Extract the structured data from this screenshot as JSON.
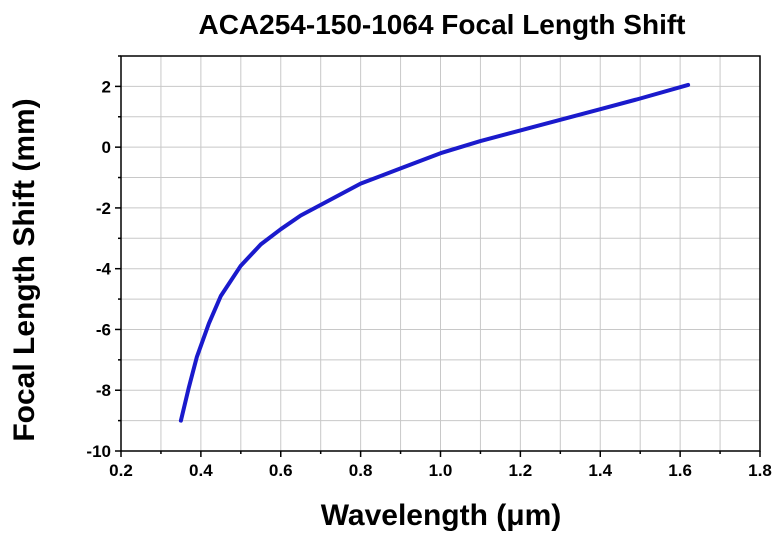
{
  "chart_data": {
    "type": "line",
    "title": "ACA254-150-1064 Focal Length Shift",
    "xlabel": "Wavelength (μm)",
    "ylabel": "Focal Length Shift (mm)",
    "xlim": [
      0.2,
      1.8
    ],
    "ylim": [
      -10,
      3
    ],
    "x_major_ticks": [
      0.2,
      0.4,
      0.6,
      0.8,
      1.0,
      1.2,
      1.4,
      1.6,
      1.8
    ],
    "x_tick_labels": [
      "0.2",
      "0.4",
      "0.6",
      "0.8",
      "1.0",
      "1.2",
      "1.4",
      "1.6",
      "1.8"
    ],
    "y_major_ticks": [
      -10,
      -8,
      -6,
      -4,
      -2,
      0,
      2
    ],
    "y_tick_labels": [
      "-10",
      "-8",
      "-6",
      "-4",
      "-2",
      "0",
      "2"
    ],
    "grid": true,
    "series": [
      {
        "color": "#1a1acc",
        "x": [
          0.35,
          0.37,
          0.39,
          0.42,
          0.45,
          0.5,
          0.55,
          0.6,
          0.65,
          0.7,
          0.8,
          0.9,
          1.0,
          1.1,
          1.2,
          1.3,
          1.4,
          1.5,
          1.62
        ],
        "y": [
          -9.0,
          -7.9,
          -6.9,
          -5.8,
          -4.9,
          -3.9,
          -3.2,
          -2.7,
          -2.25,
          -1.9,
          -1.2,
          -0.7,
          -0.2,
          0.2,
          0.55,
          0.9,
          1.25,
          1.6,
          2.05
        ]
      }
    ]
  }
}
